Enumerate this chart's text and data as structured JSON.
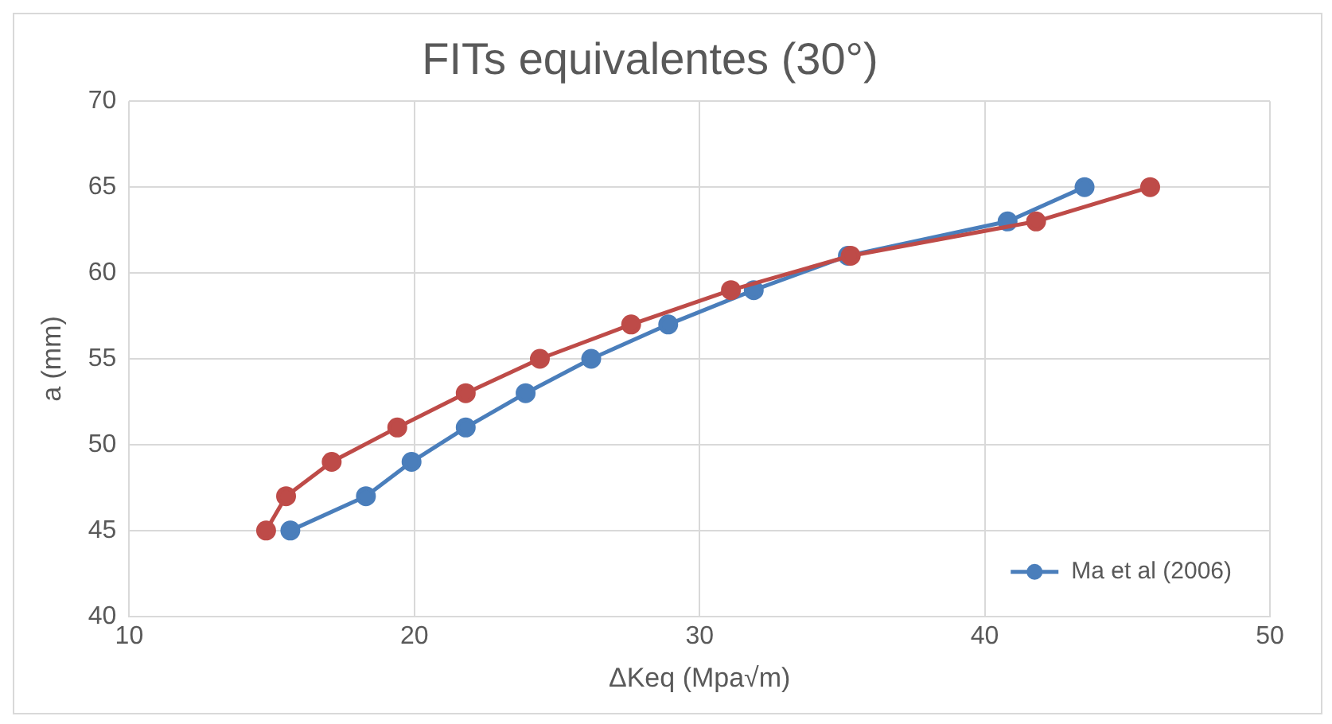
{
  "chart_data": {
    "type": "line",
    "title": "FITs equivalentes (30°)",
    "xlabel": "ΔKeq (Mpa√m)",
    "ylabel": "a (mm)",
    "xlim": [
      10,
      50
    ],
    "xticks": [
      10,
      20,
      30,
      40,
      50
    ],
    "ylim": [
      40,
      70
    ],
    "yticks": [
      40,
      45,
      50,
      55,
      60,
      65,
      70
    ],
    "grid": true,
    "legend": "bottom right",
    "marker": "circle",
    "line_style": "solid",
    "series": [
      {
        "name": "Ma et al (2006)",
        "color": "#4a7ebb",
        "x": [
          15.65,
          18.3,
          19.9,
          21.8,
          23.9,
          26.2,
          28.9,
          31.9,
          35.2,
          40.8,
          43.5
        ],
        "values": [
          45,
          47,
          49,
          51,
          53,
          55,
          57,
          59,
          61,
          63,
          65
        ]
      },
      {
        "color": "#be4b48",
        "x": [
          14.8,
          15.5,
          17.1,
          19.4,
          21.8,
          24.4,
          27.6,
          31.1,
          35.3,
          41.8,
          45.8
        ],
        "values": [
          45,
          47,
          49,
          51,
          53,
          55,
          57,
          59,
          61,
          63,
          65
        ]
      }
    ]
  }
}
